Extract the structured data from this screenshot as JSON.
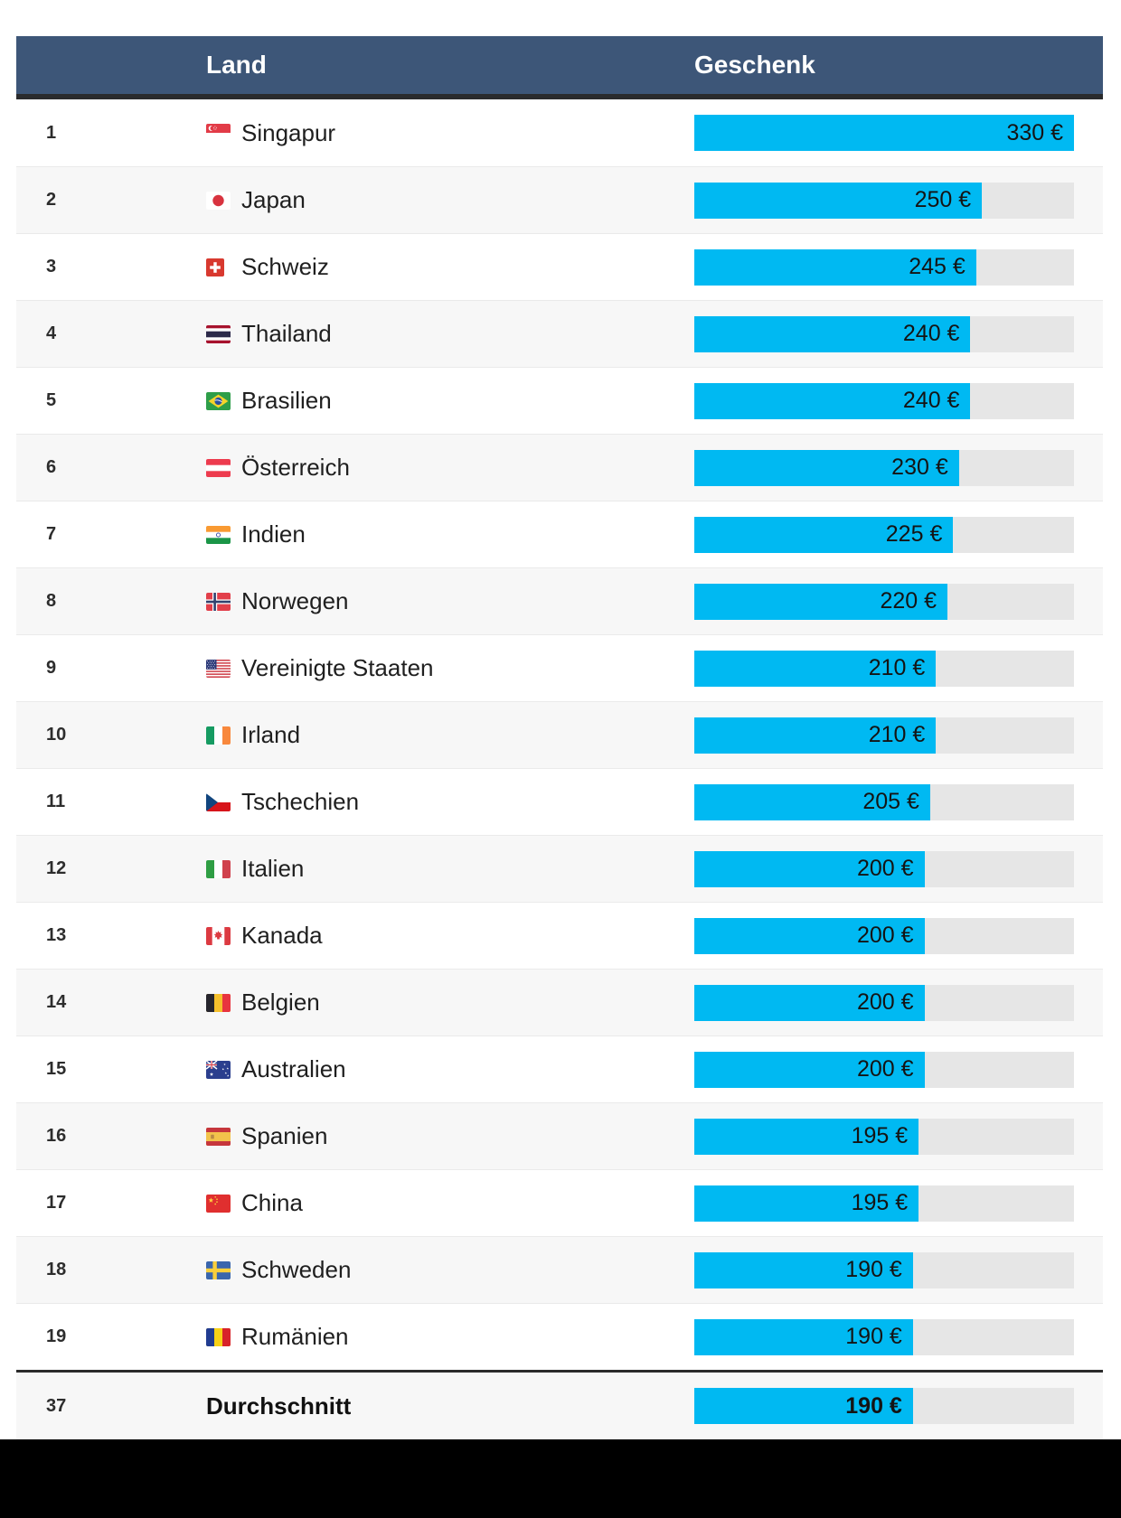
{
  "table": {
    "columns": {
      "rank": "",
      "land": "Land",
      "geschenk": "Geschenk"
    },
    "max_value": 330,
    "colors": {
      "header_bg": "#3d5678",
      "header_text": "#ffffff",
      "bar_fill": "#00b9f2",
      "bar_track": "#e6e6e6",
      "row_alt_bg": "#f7f7f7",
      "divider": "#2b2b2b",
      "footer_bg": "#000000"
    },
    "rows": [
      {
        "rank": "1",
        "country": "Singapur",
        "flag": "sg",
        "value": 330,
        "label": "330 €"
      },
      {
        "rank": "2",
        "country": "Japan",
        "flag": "jp",
        "value": 250,
        "label": "250 €"
      },
      {
        "rank": "3",
        "country": "Schweiz",
        "flag": "ch",
        "value": 245,
        "label": "245 €"
      },
      {
        "rank": "4",
        "country": "Thailand",
        "flag": "th",
        "value": 240,
        "label": "240 €"
      },
      {
        "rank": "5",
        "country": "Brasilien",
        "flag": "br",
        "value": 240,
        "label": "240 €"
      },
      {
        "rank": "6",
        "country": "Österreich",
        "flag": "at",
        "value": 230,
        "label": "230 €"
      },
      {
        "rank": "7",
        "country": "Indien",
        "flag": "in",
        "value": 225,
        "label": "225 €"
      },
      {
        "rank": "8",
        "country": "Norwegen",
        "flag": "no",
        "value": 220,
        "label": "220 €"
      },
      {
        "rank": "9",
        "country": "Vereinigte Staaten",
        "flag": "us",
        "value": 210,
        "label": "210 €"
      },
      {
        "rank": "10",
        "country": "Irland",
        "flag": "ie",
        "value": 210,
        "label": "210 €"
      },
      {
        "rank": "11",
        "country": "Tschechien",
        "flag": "cz",
        "value": 205,
        "label": "205 €"
      },
      {
        "rank": "12",
        "country": "Italien",
        "flag": "it",
        "value": 200,
        "label": "200 €"
      },
      {
        "rank": "13",
        "country": "Kanada",
        "flag": "ca",
        "value": 200,
        "label": "200 €"
      },
      {
        "rank": "14",
        "country": "Belgien",
        "flag": "be",
        "value": 200,
        "label": "200 €"
      },
      {
        "rank": "15",
        "country": "Australien",
        "flag": "au",
        "value": 200,
        "label": "200 €"
      },
      {
        "rank": "16",
        "country": "Spanien",
        "flag": "es",
        "value": 195,
        "label": "195 €"
      },
      {
        "rank": "17",
        "country": "China",
        "flag": "cn",
        "value": 195,
        "label": "195 €"
      },
      {
        "rank": "18",
        "country": "Schweden",
        "flag": "se",
        "value": 190,
        "label": "190 €"
      },
      {
        "rank": "19",
        "country": "Rumänien",
        "flag": "ro",
        "value": 190,
        "label": "190 €"
      }
    ],
    "average_row": {
      "rank": "37",
      "country": "Durchschnitt",
      "value": 190,
      "label": "190 €"
    }
  },
  "chart_data": {
    "type": "bar",
    "orientation": "horizontal",
    "categories": [
      "Singapur",
      "Japan",
      "Schweiz",
      "Thailand",
      "Brasilien",
      "Österreich",
      "Indien",
      "Norwegen",
      "Vereinigte Staaten",
      "Irland",
      "Tschechien",
      "Italien",
      "Kanada",
      "Belgien",
      "Australien",
      "Spanien",
      "China",
      "Schweden",
      "Rumänien"
    ],
    "values": [
      330,
      250,
      245,
      240,
      240,
      230,
      225,
      220,
      210,
      210,
      205,
      200,
      200,
      200,
      200,
      195,
      195,
      190,
      190
    ],
    "ranks": [
      1,
      2,
      3,
      4,
      5,
      6,
      7,
      8,
      9,
      10,
      11,
      12,
      13,
      14,
      15,
      16,
      17,
      18,
      19
    ],
    "average": {
      "rank": 37,
      "label": "Durchschnitt",
      "value": 190
    },
    "unit": "€",
    "value_suffix": " €",
    "title": "",
    "xlabel": "Geschenk",
    "ylabel": "Land",
    "xlim": [
      0,
      330
    ],
    "grid": false,
    "legend": false,
    "bar_color": "#00b9f2"
  }
}
